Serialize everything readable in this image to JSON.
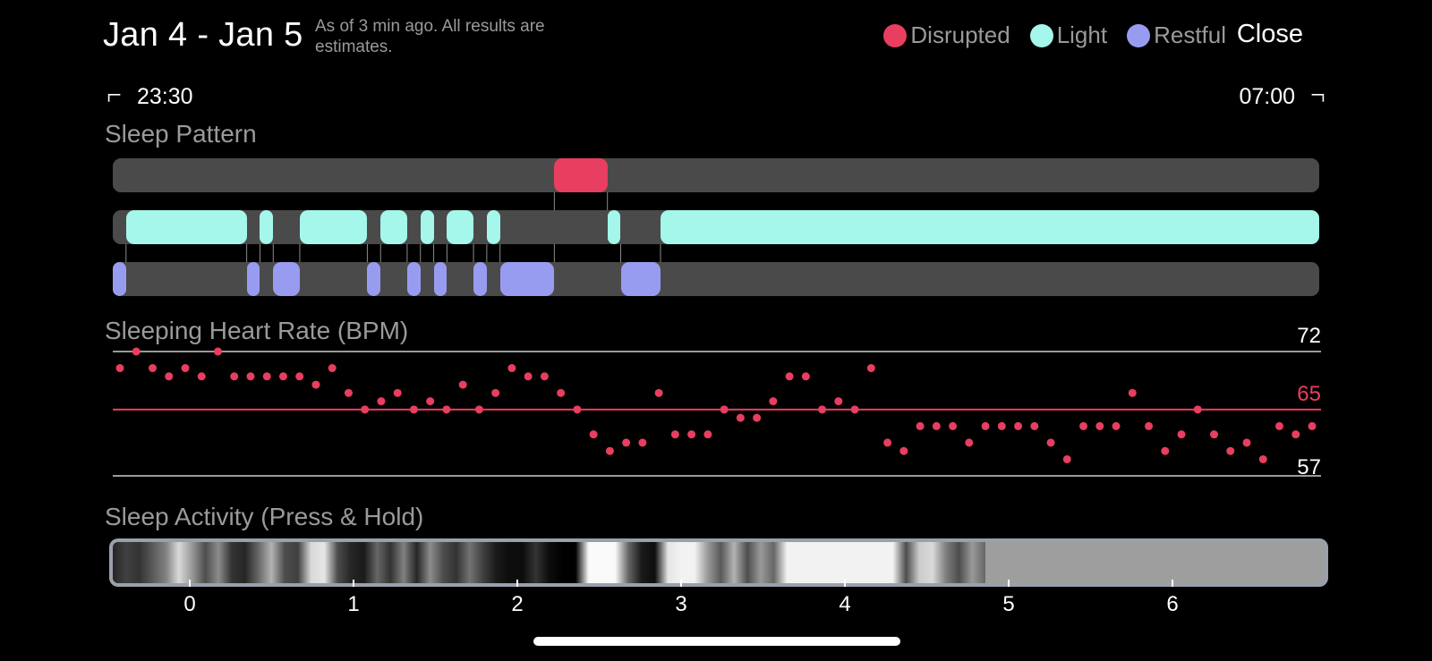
{
  "header": {
    "title": "Jan 4 - Jan 5",
    "subtitle": "As of 3 min ago. All results are estimates.",
    "close_label": "Close"
  },
  "legend": [
    {
      "label": "Disrupted",
      "color": "#e83e5f"
    },
    {
      "label": "Light",
      "color": "#a4f7ea"
    },
    {
      "label": "Restful",
      "color": "#989cf0"
    }
  ],
  "time_range": {
    "start": "23:30",
    "end": "07:00"
  },
  "sleep_pattern": {
    "title": "Sleep Pattern",
    "stages": [
      [
        "restful",
        0.0,
        0.011
      ],
      [
        "light",
        0.011,
        0.111
      ],
      [
        "restful",
        0.111,
        0.122
      ],
      [
        "light",
        0.122,
        0.133
      ],
      [
        "restful",
        0.133,
        0.155
      ],
      [
        "light",
        0.155,
        0.211
      ],
      [
        "restful",
        0.211,
        0.222
      ],
      [
        "light",
        0.222,
        0.244
      ],
      [
        "restful",
        0.244,
        0.255
      ],
      [
        "light",
        0.255,
        0.266
      ],
      [
        "restful",
        0.266,
        0.277
      ],
      [
        "light",
        0.277,
        0.299
      ],
      [
        "restful",
        0.299,
        0.31
      ],
      [
        "light",
        0.31,
        0.321
      ],
      [
        "restful",
        0.321,
        0.366
      ],
      [
        "disrupted",
        0.366,
        0.41
      ],
      [
        "light",
        0.41,
        0.421
      ],
      [
        "restful",
        0.421,
        0.454
      ],
      [
        "light",
        0.454,
        1.0
      ]
    ]
  },
  "heart_rate": {
    "title": "Sleeping Heart Rate (BPM)",
    "max_label": "72",
    "avg_label": "65",
    "min_label": "57",
    "max": 72,
    "avg": 65,
    "min": 57,
    "values": [
      70,
      72,
      70,
      69,
      70,
      69,
      72,
      69,
      69,
      69,
      69,
      69,
      68,
      70,
      67,
      65,
      66,
      67,
      65,
      66,
      65,
      68,
      65,
      67,
      70,
      69,
      69,
      67,
      65,
      62,
      60,
      61,
      61,
      67,
      62,
      62,
      62,
      65,
      64,
      64,
      66,
      69,
      69,
      65,
      66,
      65,
      70,
      61,
      60,
      63,
      63,
      63,
      61,
      63,
      63,
      63,
      63,
      61,
      59,
      63,
      63,
      63,
      67,
      63,
      60,
      62,
      65,
      62,
      60,
      61,
      59,
      63,
      62,
      63
    ]
  },
  "activity": {
    "title": "Sleep Activity (Press & Hold)",
    "ticks": [
      "0",
      "1",
      "2",
      "3",
      "4",
      "5",
      "6"
    ],
    "levels": [
      0.15,
      0.25,
      0.2,
      0.35,
      0.5,
      0.85,
      0.6,
      0.3,
      0.55,
      0.2,
      0.15,
      0.4,
      0.7,
      0.3,
      0.25,
      0.85,
      0.9,
      0.3,
      0.15,
      0.1,
      0.4,
      0.2,
      0.5,
      0.15,
      0.55,
      0.3,
      0.2,
      0.45,
      0.25,
      0.1,
      0.05,
      0.05,
      0.2,
      0.05,
      0.0,
      0.0,
      0.98,
      0.98,
      0.98,
      0.4,
      0.1,
      0.05,
      0.9,
      0.95,
      0.95,
      0.6,
      0.35,
      0.7,
      0.3,
      0.6,
      0.4,
      0.95,
      0.95,
      0.95,
      0.95,
      0.95,
      0.95,
      0.95,
      0.95,
      0.95,
      0.3,
      0.8,
      0.85,
      0.5,
      0.3,
      0.6,
      0.4
    ]
  },
  "colors": {
    "track": "#4a4a4a",
    "heart_dot": "#e83e5f",
    "avg_line": "#e83e5f",
    "ref_line": "#9a9a9a",
    "activity_rest": "#9e9e9e",
    "activity_border": "#9aa0ab"
  }
}
